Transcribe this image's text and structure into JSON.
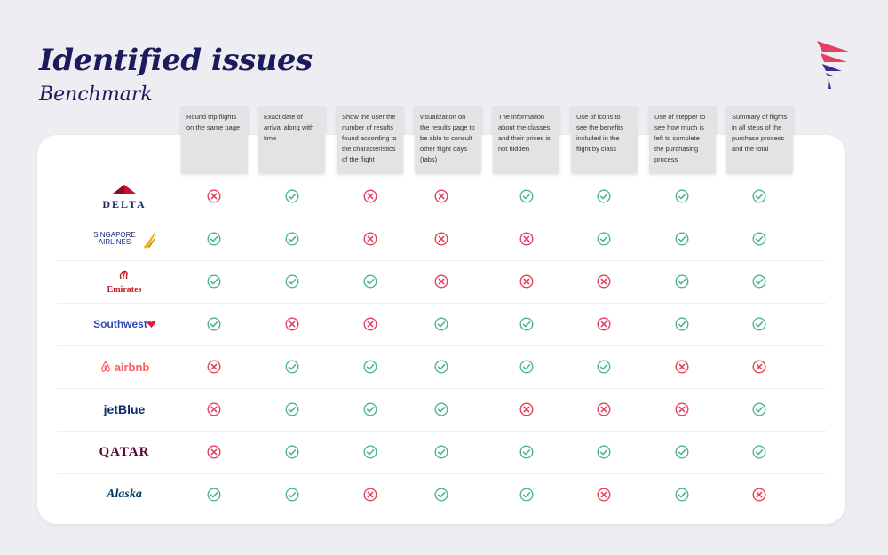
{
  "header": {
    "title": "Identified issues",
    "subtitle": "Benchmark"
  },
  "colors": {
    "ok": "#4fb39b",
    "bad": "#e3415f",
    "title": "#1c1b5e"
  },
  "columns": [
    "Round trip flights on the same page",
    "Exact date of arrival along with time",
    "Show the user the number of results found according to the characteristics of the flight",
    "visualization on the results page to be able to consult other flight days (tabs)",
    "The information about the classes and their prices is not hidden",
    "Use of icons to see the benefits included in the flight by class",
    "Use of stepper to see how much is left to complete the purchasing process",
    "Summary of flights in all steps of the purchase process and the total"
  ],
  "rows": [
    {
      "logo": "DELTA",
      "key": "delta",
      "status": [
        "bad",
        "ok",
        "bad",
        "bad",
        "ok",
        "ok",
        "ok",
        "ok"
      ]
    },
    {
      "logo": "SINGAPORE AIRLINES",
      "key": "singapore",
      "status": [
        "ok",
        "ok",
        "bad",
        "bad",
        "bad",
        "ok",
        "ok",
        "ok"
      ]
    },
    {
      "logo": "Emirates",
      "key": "emirates",
      "status": [
        "ok",
        "ok",
        "ok",
        "bad",
        "bad",
        "bad",
        "ok",
        "ok"
      ]
    },
    {
      "logo": "Southwest",
      "key": "southwest",
      "status": [
        "ok",
        "bad",
        "bad",
        "ok",
        "ok",
        "bad",
        "ok",
        "ok"
      ]
    },
    {
      "logo": "airbnb",
      "key": "airbnb",
      "status": [
        "bad",
        "ok",
        "ok",
        "ok",
        "ok",
        "ok",
        "bad",
        "bad"
      ]
    },
    {
      "logo": "jetBlue",
      "key": "jetblue",
      "status": [
        "bad",
        "ok",
        "ok",
        "ok",
        "bad",
        "bad",
        "bad",
        "ok"
      ]
    },
    {
      "logo": "QATAR",
      "key": "qatar",
      "status": [
        "bad",
        "ok",
        "ok",
        "ok",
        "ok",
        "ok",
        "ok",
        "ok"
      ]
    },
    {
      "logo": "Alaska",
      "key": "alaska",
      "status": [
        "ok",
        "ok",
        "bad",
        "ok",
        "ok",
        "bad",
        "ok",
        "bad"
      ]
    }
  ]
}
